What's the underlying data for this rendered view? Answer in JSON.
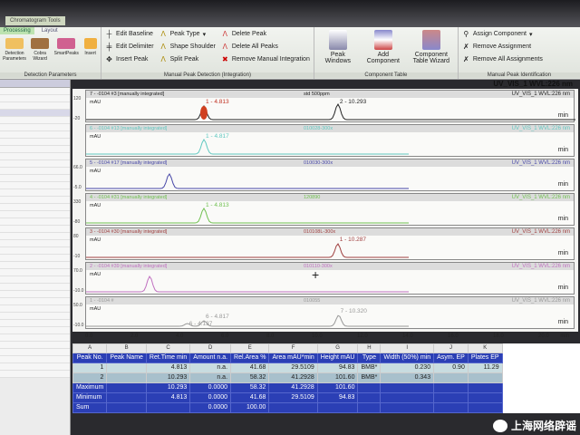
{
  "context_tab": "Chromatogram Tools",
  "ribbon": {
    "tabs": [
      "Processing",
      "Layout"
    ],
    "detection": {
      "label": "Detection Parameters",
      "buttons": [
        "Detection Parameters",
        "Cobra Wizard",
        "SmartPeaks",
        "Insert"
      ]
    },
    "manual": {
      "label": "Manual Peak Detection (Integration)",
      "col1": [
        "Edit Baseline",
        "Edit Delimiter",
        "Insert Peak"
      ],
      "col2": [
        "Peak Type",
        "Shape Shoulder",
        "Split Peak"
      ],
      "col3": [
        "Delete Peak",
        "Delete All Peaks",
        "Remove Manual Integration"
      ]
    },
    "component": {
      "label": "Component Table",
      "buttons": [
        "Peak Windows",
        "Add Component",
        "Component Table Wizard"
      ]
    },
    "identification": {
      "label": "Manual Peak Identification",
      "buttons": [
        "Assign Component",
        "Remove Assignment",
        "Remove All Assignments"
      ]
    }
  },
  "channel_top": "UV_VIS_1 WVL:226 nm",
  "traces": [
    {
      "header": "7 - -0104 #3 [manually integrated]",
      "sample": "std 500ppm",
      "channel": "UV_VIS_1 WVL:226 nm",
      "color": "#222222",
      "fill": "#d04020",
      "ymax": "120",
      "ymin": "-20",
      "peaks": [
        {
          "label": "1 - 4.813",
          "rt": 4.813,
          "h": 0.75,
          "color": "#c03020"
        },
        {
          "label": "2 - 10.293",
          "rt": 10.293,
          "h": 0.85,
          "color": "#222222"
        }
      ]
    },
    {
      "header": "6 - -0104 #13 [manually integrated]",
      "sample": "010028-300x",
      "channel": "UV_VIS_1 WVL:226 nm",
      "color": "#60c8c0",
      "ymax": "",
      "ymin": "",
      "peaks": [
        {
          "label": "1 - 4.817",
          "rt": 4.817,
          "h": 0.8,
          "color": "#60c8c0"
        }
      ]
    },
    {
      "header": "5 - -0104 #17 [manually integrated]",
      "sample": "010030-300x",
      "channel": "UV_VIS_1 WVL:226 nm",
      "color": "#4848a8",
      "ymax": "66.0",
      "ymin": "-5.0",
      "peaks": [
        {
          "label": "",
          "rt": 3.4,
          "h": 0.8,
          "color": "#4848a8"
        }
      ]
    },
    {
      "header": "4 - -0104 #31 [manually integrated]",
      "sample": "120890",
      "channel": "UV_VIS_1 WVL:226 nm",
      "color": "#70c050",
      "ymax": "330",
      "ymin": "-80",
      "peaks": [
        {
          "label": "1 - 4.813",
          "rt": 4.813,
          "h": 0.8,
          "color": "#70c050"
        }
      ]
    },
    {
      "header": "3 - -0104 #30 [manually integrated]",
      "sample": "010108L-300x",
      "channel": "UV_VIS_1 WVL:226 nm",
      "color": "#a04040",
      "ymax": "80",
      "ymin": "-10",
      "peaks": [
        {
          "label": "1 - 10.287",
          "rt": 10.287,
          "h": 0.75,
          "color": "#a04040"
        }
      ]
    },
    {
      "header": "2 - -0104 #39 [manually integrated]",
      "sample": "010110-300x",
      "channel": "UV_VIS_1 WVL:226 nm",
      "color": "#c070c0",
      "ymax": "70.0",
      "ymin": "-10.0",
      "peaks": [
        {
          "label": "",
          "rt": 2.6,
          "h": 0.85,
          "color": "#c05060"
        }
      ]
    },
    {
      "header": "1 - -0104 #",
      "sample": "010055",
      "channel": "UV_VIS_1 WVL:226 nm",
      "color": "#999999",
      "ymax": "50.0",
      "ymin": "-10.0",
      "peaks": [
        {
          "label": "6 - 4.817",
          "rt": 4.817,
          "h": 0.3,
          "color": "#999"
        },
        {
          "label": "6 - 4.137",
          "rt": 4.137,
          "h": 0.15,
          "color": "#999"
        },
        {
          "label": "7 - 10.320",
          "rt": 10.32,
          "h": 0.6,
          "color": "#999"
        }
      ]
    }
  ],
  "x_axis": {
    "ticks": [
      "0.0",
      "2.0",
      "4.0",
      "6.0",
      "8.0",
      "10.0",
      "12.0",
      "14.0",
      "16.0",
      "18.0",
      "20.0"
    ],
    "unit": "min",
    "range": [
      0,
      20
    ]
  },
  "mau_label": "mAU",
  "min_label": "min",
  "table": {
    "col_letters": [
      "A",
      "B",
      "C",
      "D",
      "E",
      "F",
      "G",
      "H",
      "I",
      "J",
      "K"
    ],
    "headers": [
      "Peak No.",
      "Peak Name",
      "Ret.Time min",
      "Amount n.a.",
      "Rel.Area %",
      "Area mAU*min",
      "Height mAU",
      "Type",
      "Width (50%) min",
      "Asym. EP",
      "Plates EP"
    ],
    "rows": [
      [
        "1",
        "",
        "4.813",
        "n.a.",
        "41.68",
        "29.5109",
        "94.83",
        "BMB*",
        "0.230",
        "0.90",
        "11.29"
      ],
      [
        "2",
        "",
        "10.293",
        "n.a.",
        "58.32",
        "41.2928",
        "101.60",
        "BMB*",
        "0.343",
        "",
        ""
      ]
    ],
    "aggregates": [
      [
        "Maximum",
        "",
        "10.293",
        "0.0000",
        "58.32",
        "41.2928",
        "101.60",
        "",
        "",
        "",
        ""
      ],
      [
        "Minimum",
        "",
        "4.813",
        "0.0000",
        "41.68",
        "29.5109",
        "94.83",
        "",
        "",
        "",
        ""
      ],
      [
        "Sum",
        "",
        "",
        "0.0000",
        "100.00",
        "",
        "",
        "",
        "",
        "",
        ""
      ]
    ]
  },
  "watermark": "上海网络辟谣"
}
